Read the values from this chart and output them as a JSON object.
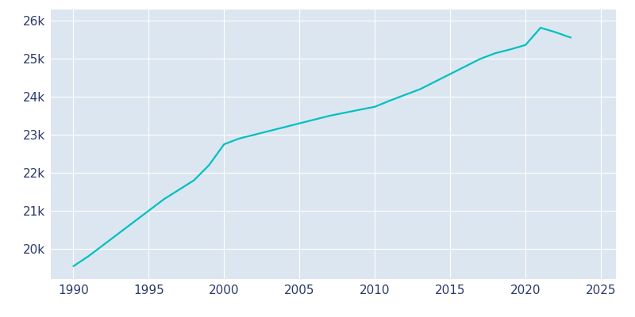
{
  "years": [
    1990,
    1991,
    1992,
    1993,
    1994,
    1995,
    1996,
    1997,
    1998,
    1999,
    2000,
    2001,
    2002,
    2003,
    2004,
    2005,
    2006,
    2007,
    2008,
    2009,
    2010,
    2011,
    2012,
    2013,
    2014,
    2015,
    2016,
    2017,
    2018,
    2019,
    2020,
    2021,
    2022,
    2023
  ],
  "population": [
    19536,
    19800,
    20100,
    20400,
    20700,
    21000,
    21300,
    21550,
    21800,
    22200,
    22750,
    22900,
    23000,
    23100,
    23200,
    23300,
    23400,
    23500,
    23580,
    23660,
    23737,
    23900,
    24050,
    24200,
    24400,
    24600,
    24800,
    25000,
    25150,
    25250,
    25365,
    25820,
    25700,
    25560
  ],
  "line_color": "#00C0C0",
  "bg_color": "#FFFFFF",
  "plot_bg_color": "#DCE6F0",
  "tick_color": "#2B3A6B",
  "grid_color": "#FFFFFF",
  "xlim": [
    1988.5,
    2026
  ],
  "ylim": [
    19200,
    26300
  ],
  "xticks": [
    1990,
    1995,
    2000,
    2005,
    2010,
    2015,
    2020,
    2025
  ],
  "yticks": [
    20000,
    21000,
    22000,
    23000,
    24000,
    25000,
    26000
  ],
  "ytick_labels": [
    "20k",
    "21k",
    "22k",
    "23k",
    "24k",
    "25k",
    "26k"
  ],
  "linewidth": 1.6
}
